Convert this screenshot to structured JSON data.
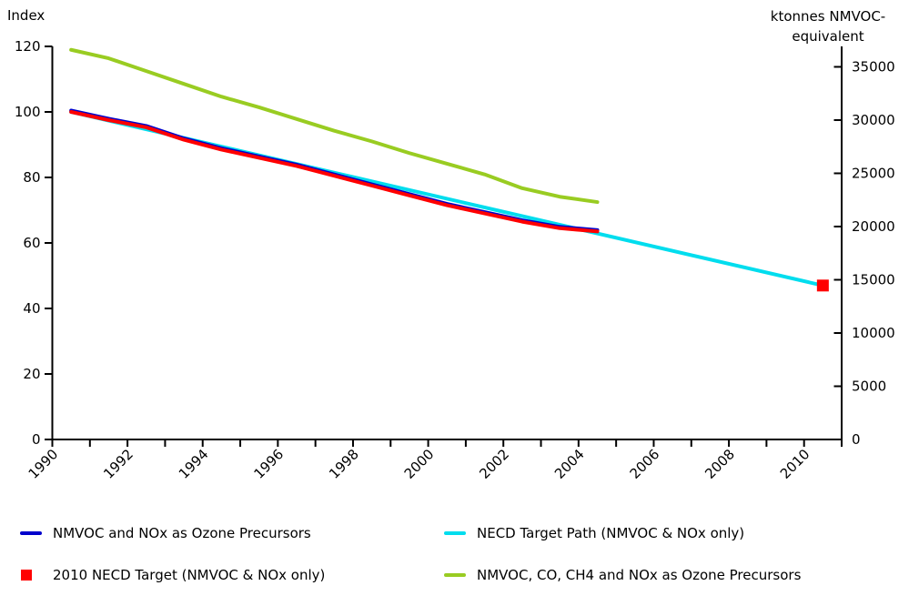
{
  "chart_data": {
    "type": "line",
    "title": "",
    "left_axis": {
      "title": "Index",
      "min": 0,
      "max": 120,
      "ticks": [
        0,
        20,
        40,
        60,
        80,
        100,
        120
      ]
    },
    "right_axis": {
      "title_line1": "ktonnes NMVOC-",
      "title_line2": "equivalent",
      "min": 0,
      "max": 36920,
      "ticks": [
        0,
        5000,
        10000,
        15000,
        20000,
        25000,
        30000,
        35000
      ]
    },
    "x_axis": {
      "first_tick_year": 1990,
      "last_tick_year": 2011,
      "tick_every_years": 1,
      "labels": [
        "1990",
        "1992",
        "1994",
        "1996",
        "1998",
        "2000",
        "2002",
        "2004",
        "2006",
        "2008",
        "2010"
      ]
    },
    "grid": "off",
    "legend_position": "bottom-two-columns",
    "series": [
      {
        "id": "four-pollutants",
        "name": "NMVOC, CO, CH4 and NOx as Ozone Precursors",
        "axis": "right",
        "unit": "ktonnes NMVOC-equivalent",
        "color": "#99CC22",
        "years": [
          1990,
          1991,
          1992,
          1993,
          1994,
          1995,
          1996,
          1997,
          1998,
          1999,
          2000,
          2001,
          2002,
          2003,
          2004
        ],
        "values": [
          36600,
          35800,
          34600,
          33400,
          32200,
          31200,
          30100,
          29000,
          28000,
          26900,
          25900,
          24900,
          23600,
          22800,
          22300
        ]
      },
      {
        "id": "necd-target-path",
        "name": "NECD Target Path (NMVOC & NOx only)",
        "axis": "left",
        "unit": "index",
        "color": "#00DDEE",
        "years": [
          1990,
          2010
        ],
        "values": [
          100,
          47
        ]
      },
      {
        "id": "nmvoc-nox",
        "name": "NMVOC and NOx as Ozone Precursors",
        "axis": "left",
        "unit": "index",
        "color": "#0000CC",
        "overlay_color": "#FF0000",
        "years": [
          1990,
          1991,
          1992,
          1993,
          1994,
          1995,
          1996,
          1997,
          1998,
          1999,
          2000,
          2001,
          2002,
          2003,
          2004
        ],
        "values": [
          100,
          97.5,
          95.3,
          91.5,
          88.5,
          86,
          83.5,
          80.5,
          77.5,
          74.5,
          71.5,
          69,
          66.5,
          64.5,
          63.5
        ]
      }
    ],
    "target_marker": {
      "id": "necd-2010-target",
      "name": "2010 NECD Target (NMVOC & NOx only)",
      "shape": "square",
      "color": "#FF0000",
      "axis": "left",
      "year": 2010,
      "value": 47
    },
    "legend": [
      {
        "label": "NMVOC and NOx as Ozone Precursors",
        "swatch": "line",
        "color": "#0000CC"
      },
      {
        "label": "2010 NECD Target (NMVOC & NOx only)",
        "swatch": "square",
        "color": "#FF0000"
      },
      {
        "label": "NECD Target Path (NMVOC & NOx only)",
        "swatch": "line",
        "color": "#00DDEE"
      },
      {
        "label": "NMVOC, CO, CH4 and NOx as Ozone Precursors",
        "swatch": "line",
        "color": "#99CC22"
      }
    ]
  }
}
